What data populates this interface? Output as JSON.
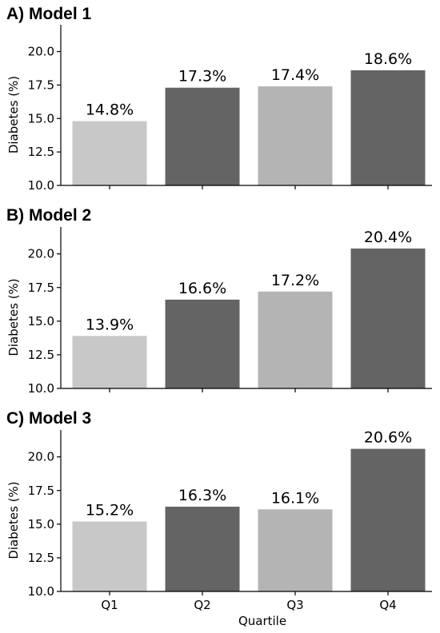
{
  "chart_data": [
    {
      "type": "bar",
      "title": "A) Model 1",
      "categories": [
        "Q1",
        "Q2",
        "Q3",
        "Q4"
      ],
      "values": [
        14.8,
        17.3,
        17.4,
        18.6
      ],
      "data_labels": [
        "14.8%",
        "17.3%",
        "17.4%",
        "18.6%"
      ],
      "ylabel": "Diabetes (%)",
      "xlabel": "",
      "ylim": [
        10.0,
        22.0
      ],
      "yticks": [
        "10.0",
        "12.5",
        "15.0",
        "17.5",
        "20.0"
      ],
      "bar_colors": [
        "#c8c8c8",
        "#646464",
        "#b4b4b4",
        "#646464"
      ],
      "grid": false
    },
    {
      "type": "bar",
      "title": "B) Model 2",
      "categories": [
        "Q1",
        "Q2",
        "Q3",
        "Q4"
      ],
      "values": [
        13.9,
        16.6,
        17.2,
        20.4
      ],
      "data_labels": [
        "13.9%",
        "16.6%",
        "17.2%",
        "20.4%"
      ],
      "ylabel": "Diabetes (%)",
      "xlabel": "",
      "ylim": [
        10.0,
        22.0
      ],
      "yticks": [
        "10.0",
        "12.5",
        "15.0",
        "17.5",
        "20.0"
      ],
      "bar_colors": [
        "#c8c8c8",
        "#646464",
        "#b4b4b4",
        "#646464"
      ],
      "grid": false
    },
    {
      "type": "bar",
      "title": "C) Model 3",
      "categories": [
        "Q1",
        "Q2",
        "Q3",
        "Q4"
      ],
      "values": [
        15.2,
        16.3,
        16.1,
        20.6
      ],
      "data_labels": [
        "15.2%",
        "16.3%",
        "16.1%",
        "20.6%"
      ],
      "ylabel": "Diabetes (%)",
      "xlabel": "Quartile",
      "ylim": [
        10.0,
        22.0
      ],
      "yticks": [
        "10.0",
        "12.5",
        "15.0",
        "17.5",
        "20.0"
      ],
      "bar_colors": [
        "#c8c8c8",
        "#646464",
        "#b4b4b4",
        "#646464"
      ],
      "grid": false
    }
  ]
}
